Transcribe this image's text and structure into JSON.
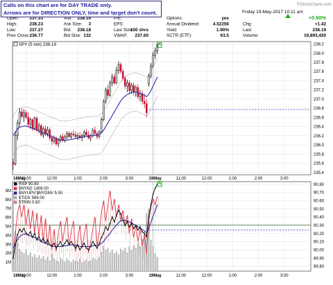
{
  "annotation": {
    "line1": "Calls on this chart are for DAY TRADE only.",
    "line2": "Arrows are for DIRECTION ONLY, time and target don't count."
  },
  "header": {
    "date": "Friday 19-May-2017 10:11 am",
    "watermark": "©StockCharts.com",
    "rows": [
      [
        {
          "label": "Open:",
          "value": "237.33"
        },
        {
          "label": "Ask:",
          "value": "238.19"
        },
        {
          "label": "P/E:",
          "value": ""
        },
        {
          "label": "Options:",
          "value": "yes"
        },
        {
          "label": "",
          "value": "+0.60%"
        }
      ],
      [
        {
          "label": "High:",
          "value": "238.23"
        },
        {
          "label": "Ask Size:",
          "value": "3"
        },
        {
          "label": "EPS:",
          "value": ""
        },
        {
          "label": "Annual Dividend:",
          "value": "4.52256"
        },
        {
          "label": "Chg:",
          "value": "+1.42"
        }
      ],
      [
        {
          "label": "Low:",
          "value": "237.27"
        },
        {
          "label": "Bid:",
          "value": "238.18"
        },
        {
          "label": "Last Size:",
          "value": "100 shrs"
        },
        {
          "label": "Yield:",
          "value": "1.90%"
        },
        {
          "label": "Last:",
          "value": "238.19"
        }
      ],
      [
        {
          "label": "Prev Close:",
          "value": "236.77"
        },
        {
          "label": "Bid Size:",
          "value": "132"
        },
        {
          "label": "VWAP:",
          "value": "237.60"
        },
        {
          "label": "SCTR (ETF):",
          "value": "63.5"
        },
        {
          "label": "Volume:",
          "value": "19,893,420"
        }
      ]
    ]
  },
  "colors": {
    "up": "#000000",
    "down": "#cc1133",
    "sma": "#2a2aa0",
    "bollinger": "#b8b8b8",
    "green": "#22aa22",
    "dashed": "#3333cc",
    "rsp": "#111111",
    "nyad": "#dd3344",
    "nyupv": "#2a2aa0",
    "tick": "#aaaaaa",
    "trin": "#cc8888",
    "volume": "#bbbbbb"
  },
  "chart_data": [
    {
      "type": "candlestick",
      "legend": "SPY (5 min) 238.19",
      "ylim": [
        235.35,
        238.25
      ],
      "yticks": [
        "238.2",
        "238.0",
        "237.8",
        "237.6",
        "237.4",
        "237.2",
        "237.0",
        "236.8",
        "236.6",
        "236.4",
        "236.2",
        "236.0",
        "235.8",
        "235.6",
        "235.4"
      ],
      "xticks": [
        "18May",
        "11:00",
        "12:00",
        "1:00",
        "2:00",
        "3:00",
        "19May",
        "11:00",
        "12:00",
        "1:00",
        "2:00",
        "3:00"
      ],
      "xtick_pos": [
        0,
        6,
        18,
        30,
        42,
        54,
        66,
        78,
        90,
        102,
        114,
        126
      ],
      "x_total": 138,
      "dashed_level": 236.77,
      "candles": [
        [
          235.62,
          235.7,
          235.45,
          235.58
        ],
        [
          235.58,
          236.3,
          235.55,
          236.2
        ],
        [
          236.2,
          236.55,
          236.1,
          236.48
        ],
        [
          236.48,
          236.8,
          236.4,
          236.72
        ],
        [
          236.72,
          236.8,
          236.58,
          236.62
        ],
        [
          236.62,
          236.78,
          236.5,
          236.7
        ],
        [
          236.7,
          236.76,
          236.56,
          236.6
        ],
        [
          236.6,
          236.72,
          236.38,
          236.45
        ],
        [
          236.45,
          236.6,
          236.35,
          236.55
        ],
        [
          236.55,
          236.58,
          236.3,
          236.36
        ],
        [
          236.36,
          236.62,
          236.32,
          236.58
        ],
        [
          236.58,
          236.62,
          236.28,
          236.33
        ],
        [
          236.33,
          236.48,
          236.25,
          236.42
        ],
        [
          236.42,
          236.46,
          236.18,
          236.22
        ],
        [
          236.22,
          236.4,
          236.15,
          236.35
        ],
        [
          236.35,
          236.42,
          236.2,
          236.25
        ],
        [
          236.25,
          236.4,
          236.18,
          236.33
        ],
        [
          236.33,
          236.38,
          236.1,
          236.15
        ],
        [
          236.15,
          236.22,
          236.0,
          236.08
        ],
        [
          236.08,
          236.2,
          236.02,
          236.15
        ],
        [
          236.15,
          236.18,
          235.98,
          236.02
        ],
        [
          236.02,
          236.15,
          235.95,
          236.1
        ],
        [
          236.1,
          236.22,
          236.05,
          236.18
        ],
        [
          236.18,
          236.25,
          236.06,
          236.1
        ],
        [
          236.1,
          236.22,
          236.05,
          236.18
        ],
        [
          236.18,
          236.3,
          236.12,
          236.25
        ],
        [
          236.25,
          236.3,
          236.15,
          236.18
        ],
        [
          236.18,
          236.28,
          236.12,
          236.24
        ],
        [
          236.24,
          236.32,
          236.18,
          236.22
        ],
        [
          236.22,
          236.3,
          236.14,
          236.18
        ],
        [
          236.18,
          236.26,
          236.1,
          236.2
        ],
        [
          236.2,
          236.28,
          236.12,
          236.16
        ],
        [
          236.16,
          236.24,
          236.08,
          236.2
        ],
        [
          236.2,
          236.32,
          236.15,
          236.28
        ],
        [
          236.28,
          236.35,
          236.18,
          236.22
        ],
        [
          236.22,
          236.3,
          236.12,
          236.15
        ],
        [
          236.15,
          236.24,
          236.08,
          236.2
        ],
        [
          236.2,
          236.36,
          236.16,
          236.32
        ],
        [
          236.32,
          236.4,
          236.2,
          236.25
        ],
        [
          236.25,
          236.3,
          236.12,
          236.18
        ],
        [
          236.18,
          236.32,
          236.14,
          236.28
        ],
        [
          236.28,
          236.6,
          236.25,
          236.55
        ],
        [
          236.55,
          237.0,
          236.52,
          236.95
        ],
        [
          236.95,
          237.25,
          236.9,
          237.2
        ],
        [
          237.2,
          237.3,
          237.0,
          237.08
        ],
        [
          237.08,
          237.4,
          237.05,
          237.35
        ],
        [
          237.35,
          237.55,
          237.28,
          237.48
        ],
        [
          237.48,
          237.55,
          237.3,
          237.35
        ],
        [
          237.35,
          237.7,
          237.32,
          237.62
        ],
        [
          237.62,
          237.82,
          237.55,
          237.75
        ],
        [
          237.75,
          237.8,
          237.55,
          237.6
        ],
        [
          237.6,
          237.65,
          237.4,
          237.45
        ],
        [
          237.45,
          237.5,
          237.22,
          237.28
        ],
        [
          237.28,
          237.42,
          237.15,
          237.35
        ],
        [
          237.35,
          237.4,
          237.1,
          237.18
        ],
        [
          237.18,
          237.35,
          237.12,
          237.3
        ],
        [
          237.3,
          237.36,
          237.08,
          237.15
        ],
        [
          237.15,
          237.3,
          237.05,
          237.25
        ],
        [
          237.25,
          237.32,
          237.0,
          237.05
        ],
        [
          237.05,
          237.2,
          236.95,
          237.12
        ],
        [
          237.12,
          237.18,
          236.88,
          236.95
        ],
        [
          236.95,
          237.12,
          236.8,
          236.9
        ],
        [
          236.9,
          237.0,
          236.6,
          236.7
        ],
        [
          237.33,
          237.55,
          237.27,
          237.5
        ],
        [
          237.5,
          237.78,
          237.45,
          237.72
        ],
        [
          237.72,
          238.02,
          237.68,
          237.95
        ],
        [
          237.95,
          238.12,
          237.88,
          238.05
        ],
        [
          238.05,
          238.23,
          237.98,
          238.19
        ]
      ],
      "sma": [
        236.2,
        236.28,
        236.35,
        236.38,
        236.4,
        236.41,
        236.41,
        236.4,
        236.38,
        236.36,
        236.34,
        236.32,
        236.3,
        236.28,
        236.26,
        236.24,
        236.22,
        236.2,
        236.18,
        236.16,
        236.14,
        236.12,
        236.11,
        236.1,
        236.1,
        236.1,
        236.11,
        236.12,
        236.13,
        236.14,
        236.15,
        236.16,
        236.17,
        236.18,
        236.19,
        236.19,
        236.2,
        236.2,
        236.21,
        236.21,
        236.22,
        236.26,
        236.32,
        236.4,
        236.48,
        236.56,
        236.64,
        236.72,
        236.8,
        236.88,
        236.96,
        237.02,
        237.06,
        237.1,
        237.12,
        237.14,
        237.15,
        237.15,
        237.14,
        237.12,
        237.1,
        237.08,
        237.05,
        237.1,
        237.18,
        237.28,
        237.38,
        237.48
      ],
      "arrow": {
        "x": 68,
        "y": 238.15
      }
    },
    {
      "type": "line",
      "legends": [
        "RSP 90.80",
        "$NYAD 1408.00",
        "$NYUPV:$NYDNV 5.50",
        "$TICK 589.00",
        "$TRIN 0.60"
      ],
      "ylim": [
        89.74,
        90.83
      ],
      "yticks": [
        "90.80",
        "90.70",
        "90.60",
        "90.50",
        "90.40",
        "90.30",
        "90.20",
        "90.10",
        "90.00",
        "89.90",
        "89.80"
      ],
      "volume_axis": [
        "9M",
        "8M",
        "7M",
        "6M",
        "5M",
        "4M",
        "3M",
        "2M",
        "1M"
      ],
      "xticks": [
        "18May",
        "11:00",
        "12:00",
        "1:00",
        "2:00",
        "3:00",
        "19May",
        "11:00",
        "12:00",
        "1:00",
        "2:00",
        "3:00"
      ],
      "xtick_pos": [
        0,
        6,
        18,
        30,
        42,
        54,
        66,
        78,
        90,
        102,
        114,
        126
      ],
      "x_total": 138,
      "hline": 90.3,
      "dashed_level": 90.24,
      "rsp": [
        89.9,
        90.05,
        90.18,
        90.25,
        90.22,
        90.26,
        90.2,
        90.18,
        90.22,
        90.15,
        90.2,
        90.12,
        90.16,
        90.1,
        90.14,
        90.08,
        90.12,
        90.06,
        90.04,
        90.08,
        90.02,
        90.06,
        90.1,
        90.04,
        90.08,
        90.12,
        90.06,
        90.1,
        90.06,
        90.02,
        90.06,
        90.0,
        90.04,
        90.08,
        90.02,
        90.0,
        90.04,
        90.1,
        90.06,
        90.02,
        90.08,
        90.15,
        90.2,
        90.28,
        90.24,
        90.32,
        90.4,
        90.34,
        90.42,
        90.48,
        90.44,
        90.36,
        90.3,
        90.34,
        90.28,
        90.32,
        90.26,
        90.3,
        90.24,
        90.28,
        90.22,
        90.2,
        90.16,
        90.4,
        90.55,
        90.68,
        90.75,
        90.8
      ],
      "nyad": [
        89.95,
        90.2,
        90.45,
        90.55,
        90.4,
        90.55,
        90.3,
        90.5,
        90.25,
        90.48,
        90.2,
        90.45,
        90.15,
        90.42,
        90.1,
        90.38,
        90.05,
        90.3,
        90.0,
        90.25,
        89.98,
        90.2,
        90.35,
        90.1,
        90.28,
        90.4,
        90.05,
        90.22,
        90.35,
        89.98,
        90.12,
        90.3,
        90.02,
        90.18,
        90.32,
        89.96,
        90.1,
        90.25,
        90.4,
        90.05,
        90.22,
        90.45,
        90.6,
        90.35,
        90.55,
        90.72,
        90.48,
        90.62,
        90.4,
        90.55,
        90.35,
        90.48,
        90.28,
        90.42,
        90.2,
        90.38,
        90.15,
        90.3,
        90.1,
        90.25,
        90.05,
        90.18,
        89.95,
        90.35,
        90.52,
        90.62,
        90.55,
        90.65
      ],
      "nyupv": [
        90.02,
        90.08,
        90.12,
        90.16,
        90.18,
        90.19,
        90.19,
        90.18,
        90.17,
        90.16,
        90.15,
        90.14,
        90.12,
        90.1,
        90.09,
        90.08,
        90.07,
        90.06,
        90.05,
        90.04,
        90.04,
        90.04,
        90.04,
        90.05,
        90.05,
        90.05,
        90.06,
        90.06,
        90.06,
        90.05,
        90.05,
        90.04,
        90.04,
        90.04,
        90.04,
        90.04,
        90.04,
        90.05,
        90.05,
        90.05,
        90.06,
        90.08,
        90.1,
        90.14,
        90.17,
        90.2,
        90.24,
        90.27,
        90.3,
        90.33,
        90.35,
        90.36,
        90.36,
        90.35,
        90.34,
        90.33,
        90.31,
        90.3,
        90.28,
        90.26,
        90.25,
        90.23,
        90.21,
        90.26,
        90.33,
        90.41,
        90.48,
        90.55
      ],
      "volume": [
        8.8,
        4.5,
        3.2,
        2.5,
        2.2,
        2.0,
        2.4,
        1.8,
        2.1,
        1.6,
        1.9,
        1.5,
        1.8,
        1.4,
        1.7,
        1.3,
        1.6,
        1.2,
        1.9,
        1.4,
        1.2,
        1.1,
        1.5,
        1.3,
        1.1,
        1.4,
        1.2,
        1.0,
        1.3,
        1.2,
        1.1,
        1.4,
        1.0,
        1.2,
        1.3,
        1.1,
        1.2,
        1.5,
        1.4,
        1.3,
        1.6,
        2.2,
        2.8,
        2.4,
        2.6,
        2.1,
        2.4,
        2.0,
        2.2,
        1.9,
        2.5,
        2.3,
        2.6,
        2.1,
        2.8,
        2.4,
        2.9,
        2.6,
        3.2,
        2.8,
        3.6,
        4.4,
        6.5,
        7.0,
        3.5,
        2.8,
        2.0,
        1.6
      ]
    }
  ]
}
